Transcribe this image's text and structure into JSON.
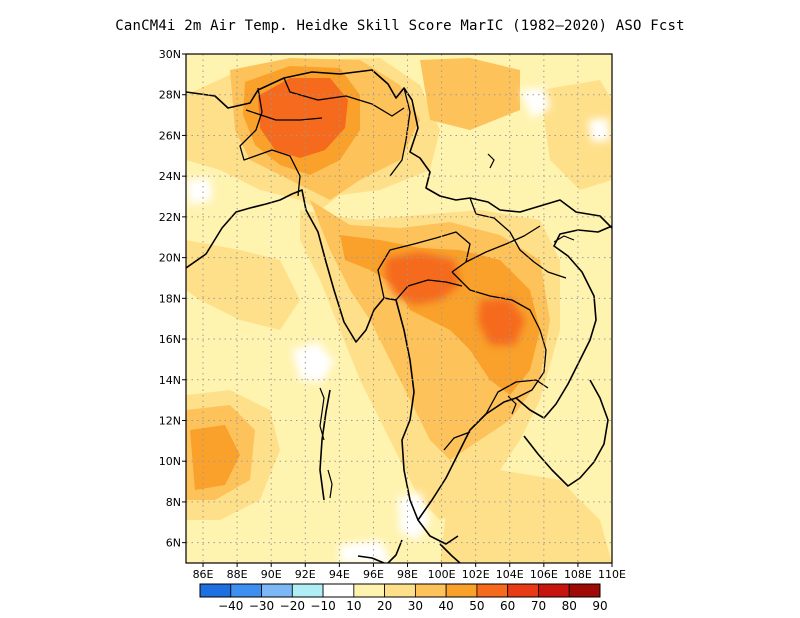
{
  "title": "CanCM4i  2m Air Temp. Heidke Skill Score MarIC (1982–2020) ASO Fcst",
  "map": {
    "lon_range": [
      85,
      110
    ],
    "lat_range": [
      5,
      30
    ],
    "lat_ticks": [
      "6N",
      "8N",
      "10N",
      "12N",
      "14N",
      "16N",
      "18N",
      "20N",
      "22N",
      "24N",
      "26N",
      "28N",
      "30N"
    ],
    "lon_ticks": [
      "86E",
      "88E",
      "90E",
      "92E",
      "94E",
      "96E",
      "98E",
      "100E",
      "102E",
      "104E",
      "106E",
      "108E",
      "110E"
    ],
    "grid": "dotted"
  },
  "colorbar": {
    "labels": [
      "−40",
      "−30",
      "−20",
      "−10",
      "10",
      "20",
      "30",
      "40",
      "50",
      "60",
      "70",
      "80",
      "90"
    ],
    "colors": [
      "#1e6fe0",
      "#3d8ff0",
      "#7bb8f5",
      "#b0eef5",
      "#ffffff",
      "#fff3b0",
      "#ffe08a",
      "#fdc25a",
      "#f9a12b",
      "#f56a1c",
      "#e83a14",
      "#c8140e",
      "#9e0a06"
    ]
  },
  "chart_data": {
    "type": "heatmap",
    "title": "CanCM4i  2m Air Temp. Heidke Skill Score MarIC (1982–2020) ASO Fcst",
    "xlim": [
      85,
      110
    ],
    "ylim": [
      5,
      30
    ],
    "legend": "bottom",
    "levels": [
      -40,
      -30,
      -20,
      -10,
      10,
      20,
      30,
      40,
      50,
      60,
      70,
      80,
      90
    ],
    "regions": [
      {
        "lon": 92,
        "lat": 27,
        "value": 65
      },
      {
        "lon": 91,
        "lat": 25.5,
        "value": 60
      },
      {
        "lon": 95.5,
        "lat": 20,
        "value": 50
      },
      {
        "lon": 99,
        "lat": 19.5,
        "value": 55
      },
      {
        "lon": 103.5,
        "lat": 17,
        "value": 55
      },
      {
        "lon": 103.5,
        "lat": 14,
        "value": 50
      },
      {
        "lon": 86.5,
        "lat": 10,
        "value": 50
      },
      {
        "lon": 93,
        "lat": 15,
        "value": 10
      },
      {
        "lon": 98,
        "lat": 8,
        "value": 10
      }
    ]
  }
}
